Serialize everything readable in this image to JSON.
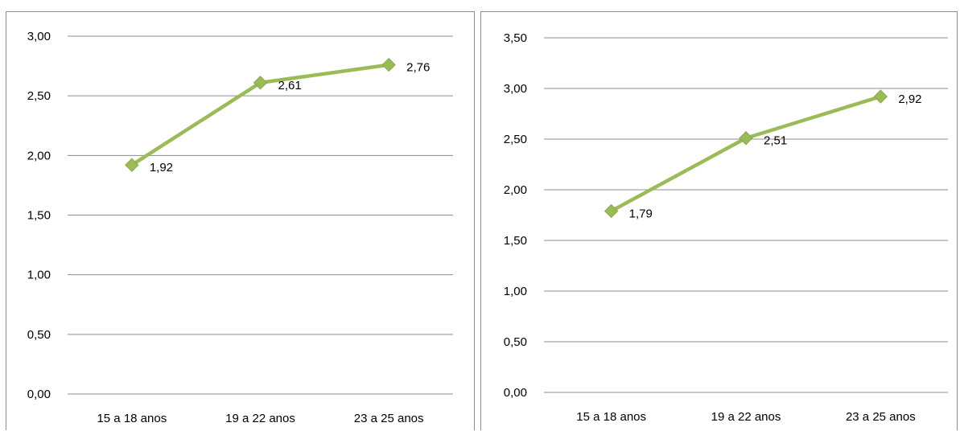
{
  "chart_data": [
    {
      "type": "line",
      "title": "",
      "xlabel": "",
      "ylabel": "",
      "categories": [
        "15 a 18 anos",
        "19 a 22 anos",
        "23 a 25 anos"
      ],
      "series": [
        {
          "values": [
            1.92,
            2.61,
            2.76
          ],
          "labels": [
            "1,92",
            "2,61",
            "2,76"
          ]
        }
      ],
      "ylim": [
        0,
        3
      ],
      "yticks": [
        "0,00",
        "0,50",
        "1,00",
        "1,50",
        "2,00",
        "2,50",
        "3,00"
      ],
      "grid": true,
      "legend": "none",
      "line_color": "#9bbb59",
      "marker": "diamond"
    },
    {
      "type": "line",
      "title": "",
      "xlabel": "",
      "ylabel": "",
      "categories": [
        "15 a 18 anos",
        "19 a 22 anos",
        "23 a 25 anos"
      ],
      "series": [
        {
          "values": [
            1.79,
            2.51,
            2.92
          ],
          "labels": [
            "1,79",
            "2,51",
            "2,92"
          ]
        }
      ],
      "ylim": [
        0,
        3.5
      ],
      "yticks": [
        "0,00",
        "0,50",
        "1,00",
        "1,50",
        "2,00",
        "2,50",
        "3,00",
        "3,50"
      ],
      "grid": true,
      "legend": "none",
      "line_color": "#9bbb59",
      "marker": "diamond"
    }
  ]
}
